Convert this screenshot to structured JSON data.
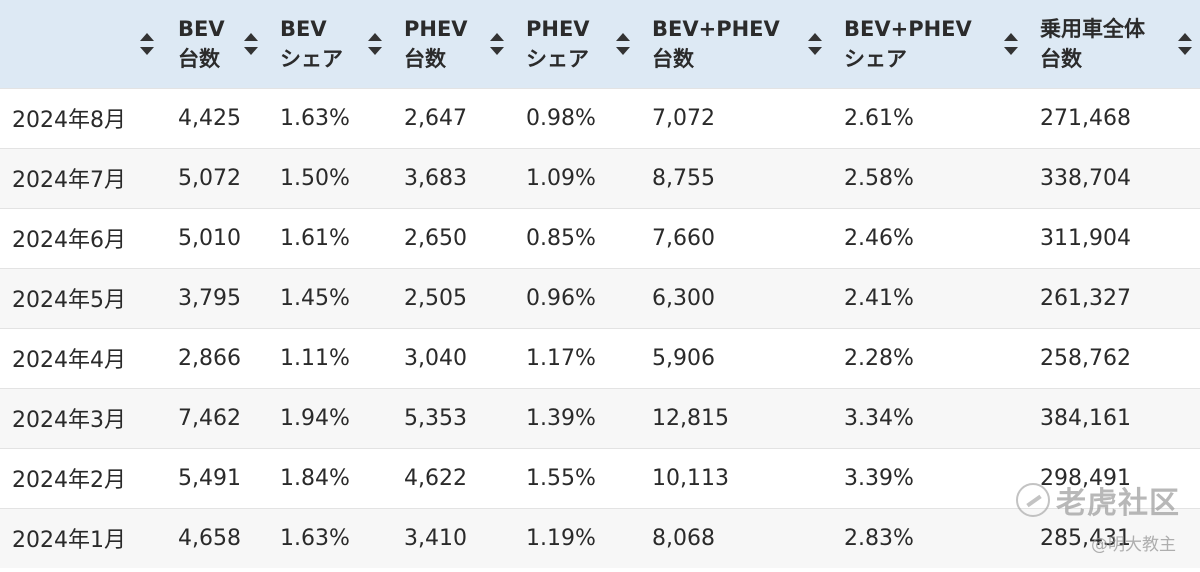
{
  "headers": [
    {
      "line1": "",
      "line2": ""
    },
    {
      "line1": "BEV",
      "line2": "台数"
    },
    {
      "line1": "BEV",
      "line2": "シェア"
    },
    {
      "line1": "PHEV",
      "line2": "台数"
    },
    {
      "line1": "PHEV",
      "line2": "シェア"
    },
    {
      "line1": "BEV+PHEV",
      "line2": "台数"
    },
    {
      "line1": "BEV+PHEV",
      "line2": "シェア"
    },
    {
      "line1": "乗用車全体",
      "line2": "台数"
    }
  ],
  "rows": [
    [
      "2024年8月",
      "4,425",
      "1.63%",
      "2,647",
      "0.98%",
      "7,072",
      "2.61%",
      "271,468"
    ],
    [
      "2024年7月",
      "5,072",
      "1.50%",
      "3,683",
      "1.09%",
      "8,755",
      "2.58%",
      "338,704"
    ],
    [
      "2024年6月",
      "5,010",
      "1.61%",
      "2,650",
      "0.85%",
      "7,660",
      "2.46%",
      "311,904"
    ],
    [
      "2024年5月",
      "3,795",
      "1.45%",
      "2,505",
      "0.96%",
      "6,300",
      "2.41%",
      "261,327"
    ],
    [
      "2024年4月",
      "2,866",
      "1.11%",
      "3,040",
      "1.17%",
      "5,906",
      "2.28%",
      "258,762"
    ],
    [
      "2024年3月",
      "7,462",
      "1.94%",
      "5,353",
      "1.39%",
      "12,815",
      "3.34%",
      "384,161"
    ],
    [
      "2024年2月",
      "5,491",
      "1.84%",
      "4,622",
      "1.55%",
      "10,113",
      "3.39%",
      "298,491"
    ],
    [
      "2024年1月",
      "4,658",
      "1.63%",
      "3,410",
      "1.19%",
      "8,068",
      "2.83%",
      "285,431"
    ]
  ],
  "watermark": {
    "brand": "老虎社区",
    "user": "@明大教主"
  },
  "colors": {
    "header_bg": "#dde9f4",
    "stripe_bg": "#f7f7f7",
    "text": "#2a2a2a"
  }
}
